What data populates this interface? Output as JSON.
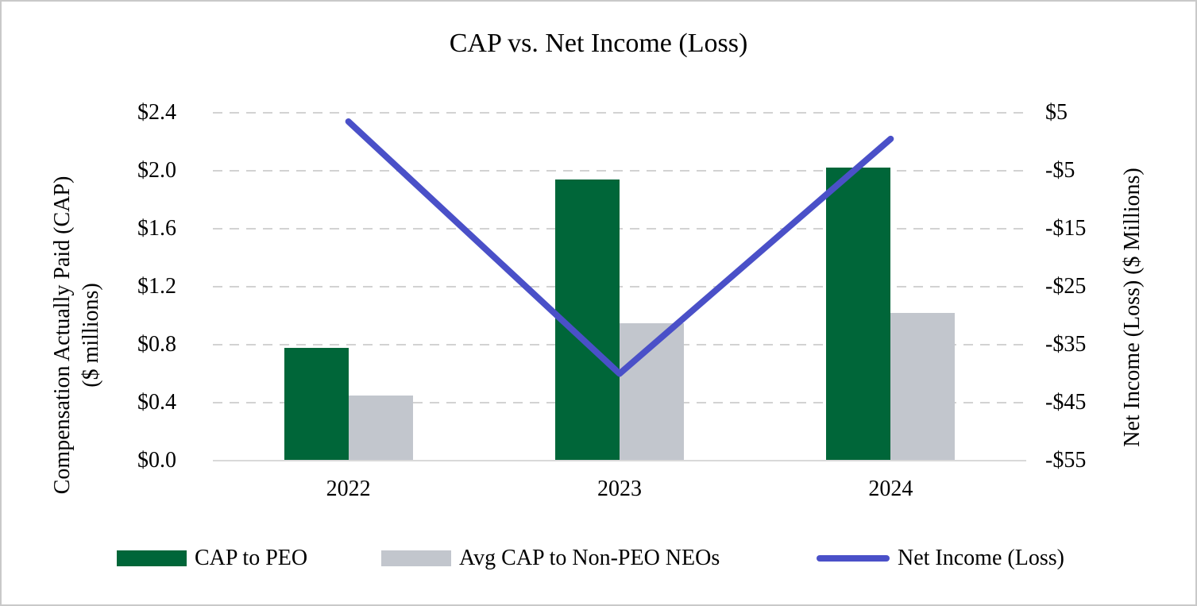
{
  "title": "CAP vs. Net Income (Loss)",
  "chart_data": {
    "type": "bar+line combo",
    "categories": [
      "2022",
      "2023",
      "2024"
    ],
    "series": [
      {
        "name": "CAP to PEO",
        "type": "bar",
        "axis": "left",
        "color": "#006639",
        "values": [
          0.78,
          1.94,
          2.02
        ]
      },
      {
        "name": "Avg CAP to Non-PEO NEOs",
        "type": "bar",
        "axis": "left",
        "color": "#c2c6cd",
        "values": [
          0.45,
          0.95,
          1.02
        ]
      },
      {
        "name": "Net Income (Loss)",
        "type": "line",
        "axis": "right",
        "color": "#4a50c8",
        "values": [
          3.5,
          -40,
          0.5
        ]
      }
    ],
    "left_axis": {
      "label_line1": "Compensation Actually Paid (CAP)",
      "label_line2": "($ millions)",
      "ticks": [
        "$2.4",
        "$2.0",
        "$1.6",
        "$1.2",
        "$0.8",
        "$0.4",
        "$0.0"
      ],
      "max": 2.4,
      "min": 0,
      "step": 0.4
    },
    "right_axis": {
      "label": "Net Income (Loss) ($ Millions)",
      "ticks": [
        "$5",
        "-$5",
        "-$15",
        "-$25",
        "-$35",
        "-$45",
        "-$55"
      ],
      "max": 5,
      "min": -55,
      "step": -10
    },
    "grid": "horizontal dashed",
    "legend_position": "bottom"
  },
  "colors": {
    "bar_green": "#006639",
    "bar_gray": "#c2c6cd",
    "line_blue": "#4a50c8",
    "gridline": "#d2d2d2",
    "axis_line": "#d9d9d9",
    "canvas_border": "#c9c9c9",
    "text": "#000000",
    "background": "#ffffff"
  }
}
